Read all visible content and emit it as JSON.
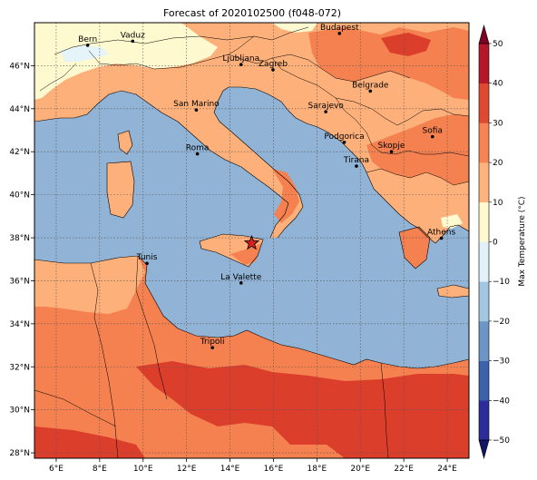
{
  "title": "Forecast of 2020102500 (f048-072)",
  "map": {
    "lon_range": [
      5,
      25
    ],
    "lat_range": [
      27.75,
      48
    ],
    "lon_ticks": [
      {
        "v": 6,
        "label": "6°E"
      },
      {
        "v": 8,
        "label": "8°E"
      },
      {
        "v": 10,
        "label": "10°E"
      },
      {
        "v": 12,
        "label": "12°E"
      },
      {
        "v": 14,
        "label": "14°E"
      },
      {
        "v": 16,
        "label": "16°E"
      },
      {
        "v": 18,
        "label": "18°E"
      },
      {
        "v": 20,
        "label": "20°E"
      },
      {
        "v": 22,
        "label": "22°E"
      },
      {
        "v": 24,
        "label": "24°E"
      }
    ],
    "lat_ticks": [
      {
        "v": 28,
        "label": "28°N"
      },
      {
        "v": 30,
        "label": "30°N"
      },
      {
        "v": 32,
        "label": "32°N"
      },
      {
        "v": 34,
        "label": "34°N"
      },
      {
        "v": 36,
        "label": "36°N"
      },
      {
        "v": 38,
        "label": "38°N"
      },
      {
        "v": 40,
        "label": "40°N"
      },
      {
        "v": 42,
        "label": "42°N"
      },
      {
        "v": 44,
        "label": "44°N"
      },
      {
        "v": 46,
        "label": "46°N"
      }
    ],
    "grid": true,
    "cities": [
      {
        "name": "Bern",
        "lon": 7.45,
        "lat": 46.95
      },
      {
        "name": "Vaduz",
        "lon": 9.52,
        "lat": 47.14
      },
      {
        "name": "Budapest",
        "lon": 19.04,
        "lat": 47.5
      },
      {
        "name": "Ljubljana",
        "lon": 14.51,
        "lat": 46.05
      },
      {
        "name": "Zagreb",
        "lon": 15.98,
        "lat": 45.81
      },
      {
        "name": "Belgrade",
        "lon": 20.46,
        "lat": 44.82
      },
      {
        "name": "San Marino",
        "lon": 12.45,
        "lat": 43.94
      },
      {
        "name": "Sarajevo",
        "lon": 18.41,
        "lat": 43.86
      },
      {
        "name": "Sofia",
        "lon": 23.32,
        "lat": 42.7
      },
      {
        "name": "Podgorica",
        "lon": 19.26,
        "lat": 42.44
      },
      {
        "name": "Skopje",
        "lon": 21.43,
        "lat": 42.0
      },
      {
        "name": "Roma",
        "lon": 12.5,
        "lat": 41.9
      },
      {
        "name": "Tirana",
        "lon": 19.82,
        "lat": 41.33
      },
      {
        "name": "Athens",
        "lon": 23.73,
        "lat": 37.98
      },
      {
        "name": "Tunis",
        "lon": 10.18,
        "lat": 36.81
      },
      {
        "name": "La Valette",
        "lon": 14.51,
        "lat": 35.9
      },
      {
        "name": "Tripoli",
        "lon": 13.19,
        "lat": 32.89
      }
    ],
    "marker": {
      "lon": 15.0,
      "lat": 37.75,
      "symbol": "star",
      "color": "#d62020"
    }
  },
  "colorbar": {
    "label": "Max Temperature (°C)",
    "levels": [
      -50,
      -40,
      -30,
      -20,
      -10,
      0,
      10,
      20,
      30,
      40,
      50
    ],
    "tick_labels": [
      "−50",
      "−40",
      "−30",
      "−20",
      "−10",
      "0",
      "10",
      "20",
      "30",
      "40",
      "50"
    ],
    "colors": [
      "#2c2c9a",
      "#3c62aa",
      "#6d95c5",
      "#a4c6e0",
      "#e0f1f7",
      "#fef9cf",
      "#fdb37b",
      "#f58452",
      "#de4a30",
      "#b4162a"
    ],
    "extend_colors": {
      "under": "#14146b",
      "over": "#7e0222"
    }
  },
  "legend_colors": {
    "sea": "#91b3d6",
    "land_10_20": "#fdb07a",
    "land_20_30": "#f4814f",
    "land_30_40": "#dc3e2c",
    "land_0_10": "#fff9cf",
    "land_neg": "#e5f4f8"
  }
}
